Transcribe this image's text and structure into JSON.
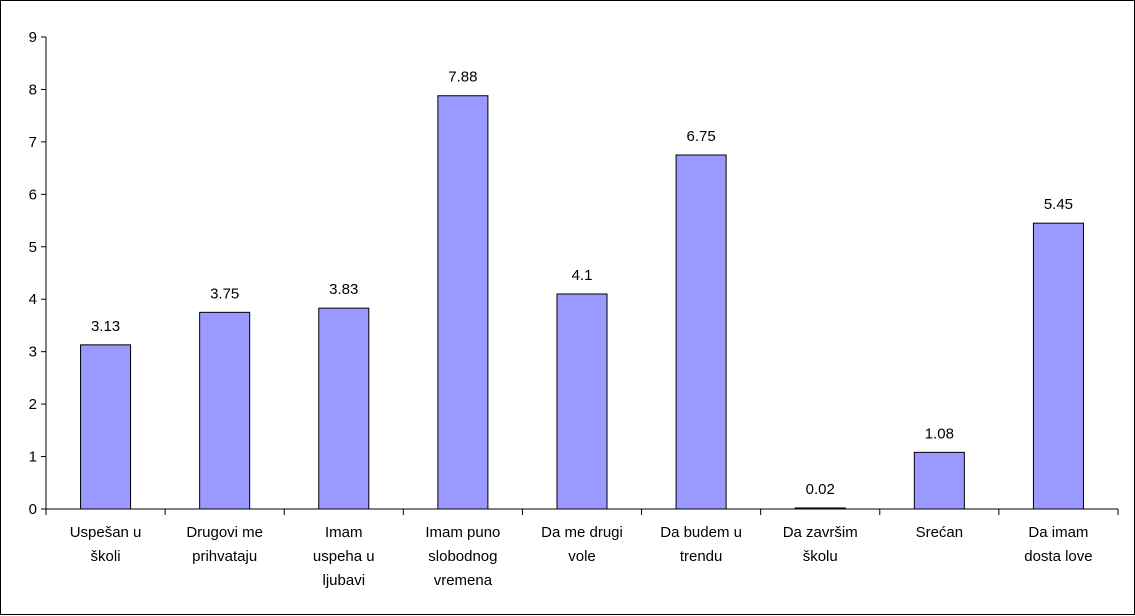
{
  "chart_data": {
    "type": "bar",
    "title": "",
    "xlabel": "",
    "ylabel": "",
    "ylim": [
      0,
      9
    ],
    "yticks": [
      0,
      1,
      2,
      3,
      4,
      5,
      6,
      7,
      8,
      9
    ],
    "grid": false,
    "legend": "none",
    "categories": [
      [
        "Uspešan u",
        "školi"
      ],
      [
        "Drugovi me",
        "prihvataju"
      ],
      [
        "Imam",
        "uspeha u",
        "ljubavi"
      ],
      [
        "Imam puno",
        "slobodnog",
        "vremena"
      ],
      [
        "Da me drugi",
        "vole"
      ],
      [
        "Da budem u",
        "trendu"
      ],
      [
        "Da završim",
        "školu"
      ],
      [
        "Srećan"
      ],
      [
        "Da imam",
        "dosta love"
      ]
    ],
    "values": [
      3.13,
      3.75,
      3.83,
      7.88,
      4.1,
      6.75,
      0.02,
      1.08,
      5.45
    ],
    "data_labels": [
      "3.13",
      "3.75",
      "3.83",
      "7.88",
      "4.1",
      "6.75",
      "0.02",
      "1.08",
      "5.45"
    ],
    "colors": {
      "bar_fill": "#9999ff",
      "bar_stroke": "#000000",
      "axis": "#000000"
    }
  }
}
